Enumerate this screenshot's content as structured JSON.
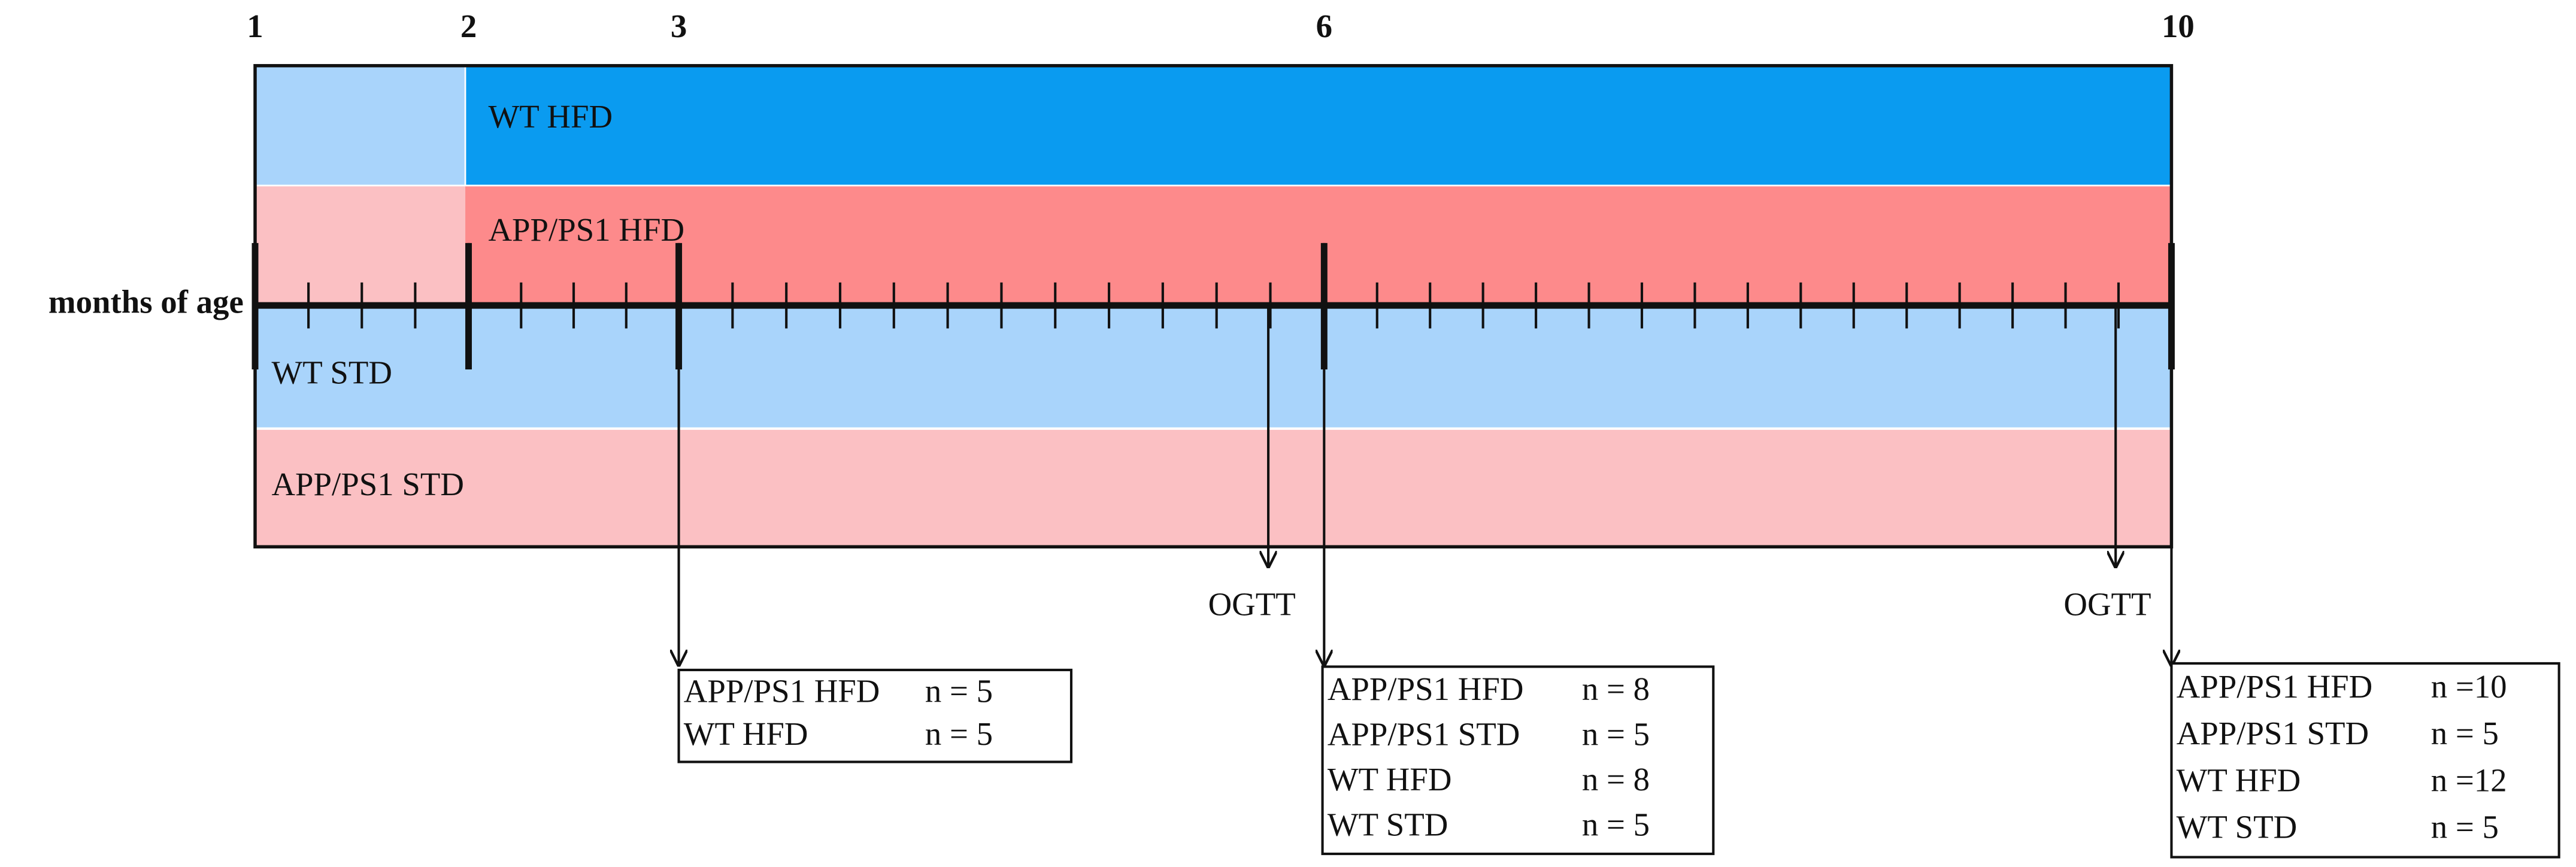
{
  "axis_label": "months of age",
  "months": [
    "1",
    "2",
    "3",
    "6",
    "10"
  ],
  "rows": [
    "WT HFD",
    "APP/PS1 HFD",
    "WT STD",
    "APP/PS1 STD"
  ],
  "ogtt": [
    "OGTT",
    "OGTT"
  ],
  "boxes": [
    {
      "rows": [
        [
          "APP/PS1 HFD",
          "n = 5"
        ],
        [
          "WT HFD",
          "n = 5"
        ]
      ]
    },
    {
      "rows": [
        [
          "APP/PS1 HFD",
          "n = 8"
        ],
        [
          "APP/PS1 STD",
          "n = 5"
        ],
        [
          "WT HFD",
          "n = 8"
        ],
        [
          "WT STD",
          "n = 5"
        ]
      ]
    },
    {
      "rows": [
        [
          "APP/PS1 HFD",
          "n =10"
        ],
        [
          "APP/PS1 STD",
          "n = 5"
        ],
        [
          "WT HFD",
          "n =12"
        ],
        [
          "WT STD",
          "n = 5"
        ]
      ]
    }
  ]
}
